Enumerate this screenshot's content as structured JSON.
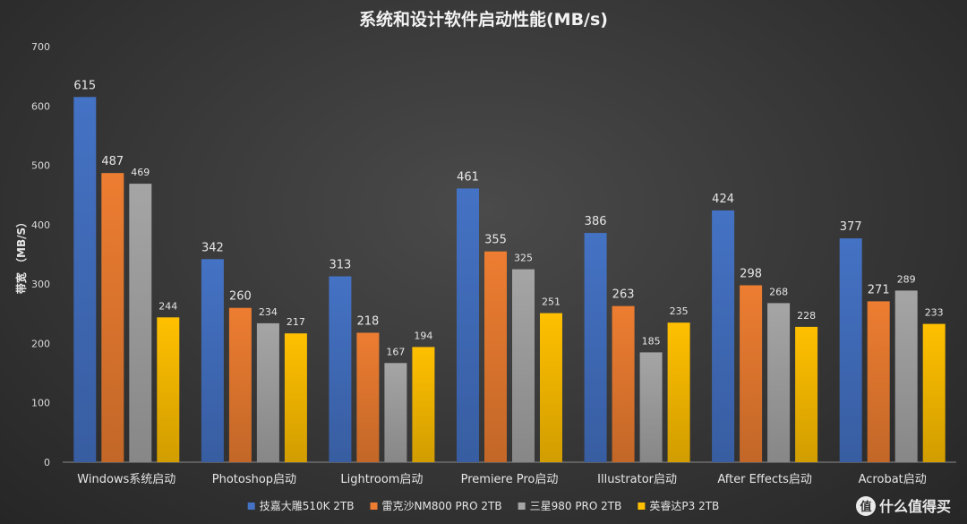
{
  "chart_data": {
    "type": "bar",
    "title": "系统和设计软件启动性能(MB/s)",
    "ylabel": "带宽 （MB/S）",
    "ylim": [
      0,
      700
    ],
    "yticks": [
      0,
      100,
      200,
      300,
      400,
      500,
      600,
      700
    ],
    "grid": false,
    "legend_position": "bottom",
    "categories": [
      "Windows系统启动",
      "Photoshop启动",
      "Lightroom启动",
      "Premiere Pro启动",
      "Illustrator启动",
      "After Effects启动",
      "Acrobat启动"
    ],
    "series": [
      {
        "name": "技嘉大雕510K 2TB",
        "color": "#4472c4",
        "values": [
          615,
          342,
          313,
          461,
          386,
          424,
          377
        ]
      },
      {
        "name": "雷克沙NM800 PRO 2TB",
        "color": "#ed7d31",
        "values": [
          487,
          260,
          218,
          355,
          263,
          298,
          271
        ]
      },
      {
        "name": "三星980 PRO 2TB",
        "color": "#a5a5a5",
        "values": [
          469,
          234,
          167,
          325,
          185,
          268,
          289
        ]
      },
      {
        "name": "英睿达P3 2TB",
        "color": "#ffc000",
        "values": [
          244,
          217,
          194,
          251,
          235,
          228,
          233
        ]
      }
    ]
  },
  "watermark": {
    "glyph": "值",
    "text": "什么值得买"
  }
}
